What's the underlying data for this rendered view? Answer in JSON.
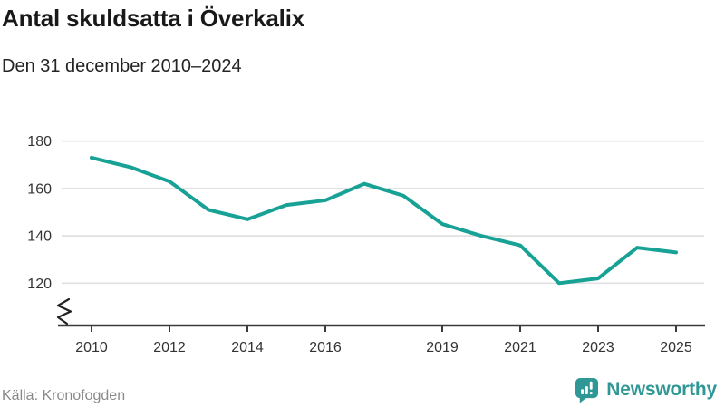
{
  "title": "Antal skuldsatta i Överkalix",
  "subtitle": "Den 31 december 2010–2024",
  "source": "Källa: Kronofogden",
  "brand": {
    "name": "Newsworthy",
    "color": "#2F9795",
    "icon": "bar-chart-speech-bubble-icon"
  },
  "colors": {
    "line": "#17A295",
    "grid": "#E1E1E1",
    "axis": "#3A3A3A",
    "tick_label": "#333333",
    "break_glyph": "#222222",
    "source_text": "#8A8A8A"
  },
  "icons": {
    "axis_break": "zigzag-axis-break",
    "brand_icon": "speech-bubble-with-bar-chart-and-exclamation"
  },
  "chart_data": {
    "type": "line",
    "title": "Antal skuldsatta i Överkalix",
    "subtitle": "Den 31 december 2010–2024",
    "series_name": "Antal skuldsatta",
    "x": [
      2010,
      2011,
      2012,
      2013,
      2014,
      2015,
      2016,
      2017,
      2018,
      2019,
      2020,
      2021,
      2022,
      2023,
      2024,
      2025
    ],
    "values": [
      173,
      169,
      163,
      151,
      147,
      153,
      155,
      162,
      157,
      145,
      140,
      136,
      120,
      122,
      135,
      133
    ],
    "x_ticks": [
      2010,
      2012,
      2014,
      2016,
      2019,
      2021,
      2023,
      2025
    ],
    "y_ticks": [
      180,
      160,
      140,
      120
    ],
    "ylim": [
      113,
      186
    ],
    "y_axis_break": true,
    "grid": "horizontal",
    "legend": "none",
    "xlabel": "",
    "ylabel": ""
  }
}
